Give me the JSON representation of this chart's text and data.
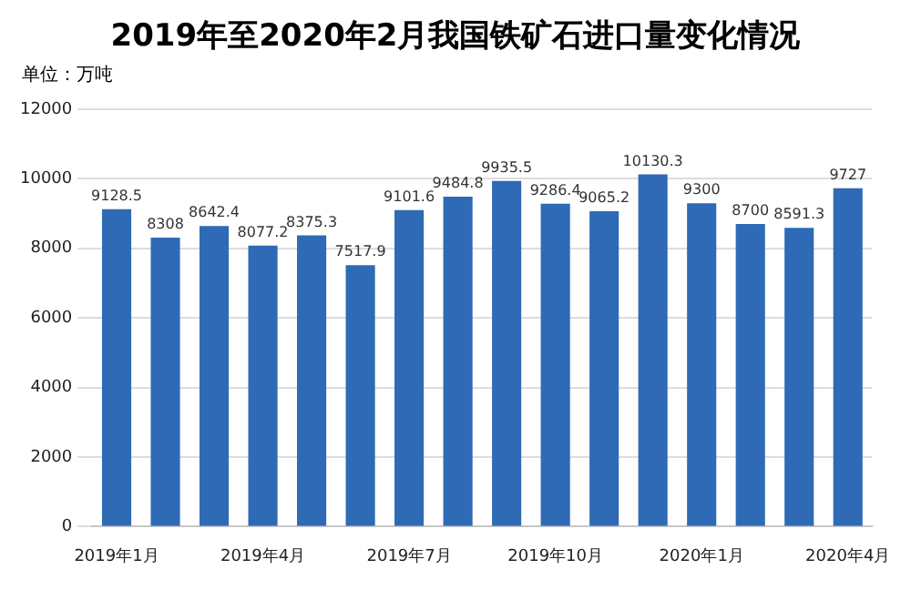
{
  "chart_data": {
    "type": "bar",
    "title": "2019年至2020年2月我国铁矿石进口量变化情况",
    "ylabel": "单位：万吨",
    "categories": [
      "2019年1月",
      null,
      null,
      "2019年4月",
      null,
      null,
      "2019年7月",
      null,
      null,
      "2019年10月",
      null,
      null,
      "2020年1月",
      null,
      null,
      "2020年4月"
    ],
    "values": [
      9128.5,
      8308,
      8642.4,
      8077.2,
      8375.3,
      7517.9,
      9101.6,
      9484.8,
      9935.5,
      9286.4,
      9065.2,
      10130.3,
      9300,
      8700,
      8591.3,
      9727
    ],
    "color": "#2e6ab5",
    "ylim": [
      0,
      12000
    ],
    "yticks": [
      0,
      2000,
      4000,
      6000,
      8000,
      10000,
      12000
    ],
    "grid": "y",
    "data_labels": true
  }
}
